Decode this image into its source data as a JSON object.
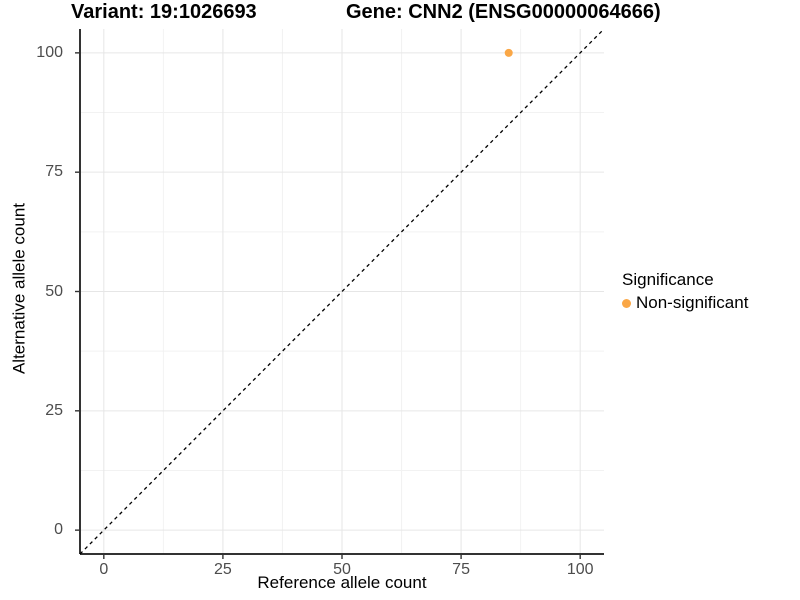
{
  "chart_data": {
    "type": "scatter",
    "title_left": "Variant: 19:1026693",
    "title_right": "Gene: CNN2 (ENSG00000064666)",
    "xlabel": "Reference allele count",
    "ylabel": "Alternative allele count",
    "xlim": [
      -5,
      105
    ],
    "ylim": [
      -5,
      105
    ],
    "x_ticks": [
      0,
      25,
      50,
      75,
      100
    ],
    "y_ticks": [
      0,
      25,
      50,
      75,
      100
    ],
    "x_minor_ticks": [
      12.5,
      37.5,
      62.5,
      87.5
    ],
    "y_minor_ticks": [
      12.5,
      37.5,
      62.5,
      87.5
    ],
    "grid": true,
    "series": [
      {
        "name": "Non-significant",
        "color": "#FAA746",
        "point_radius": 4,
        "points": [
          {
            "x": 85,
            "y": 100
          }
        ]
      }
    ],
    "reference_line": {
      "kind": "identity",
      "from": -5,
      "to": 105,
      "style": "dashed",
      "color": "#000000"
    },
    "legend": {
      "title": "Significance",
      "position": "right",
      "entries": [
        {
          "label": "Non-significant",
          "color": "#FAA746"
        }
      ]
    },
    "colors": {
      "background": "#FFFFFF",
      "grid_major": "#E6E6E6",
      "grid_minor": "#F2F2F2",
      "axis_line": "#333333",
      "tick_mark": "#333333",
      "tick_label": "#4D4D4D",
      "text": "#000000"
    }
  }
}
